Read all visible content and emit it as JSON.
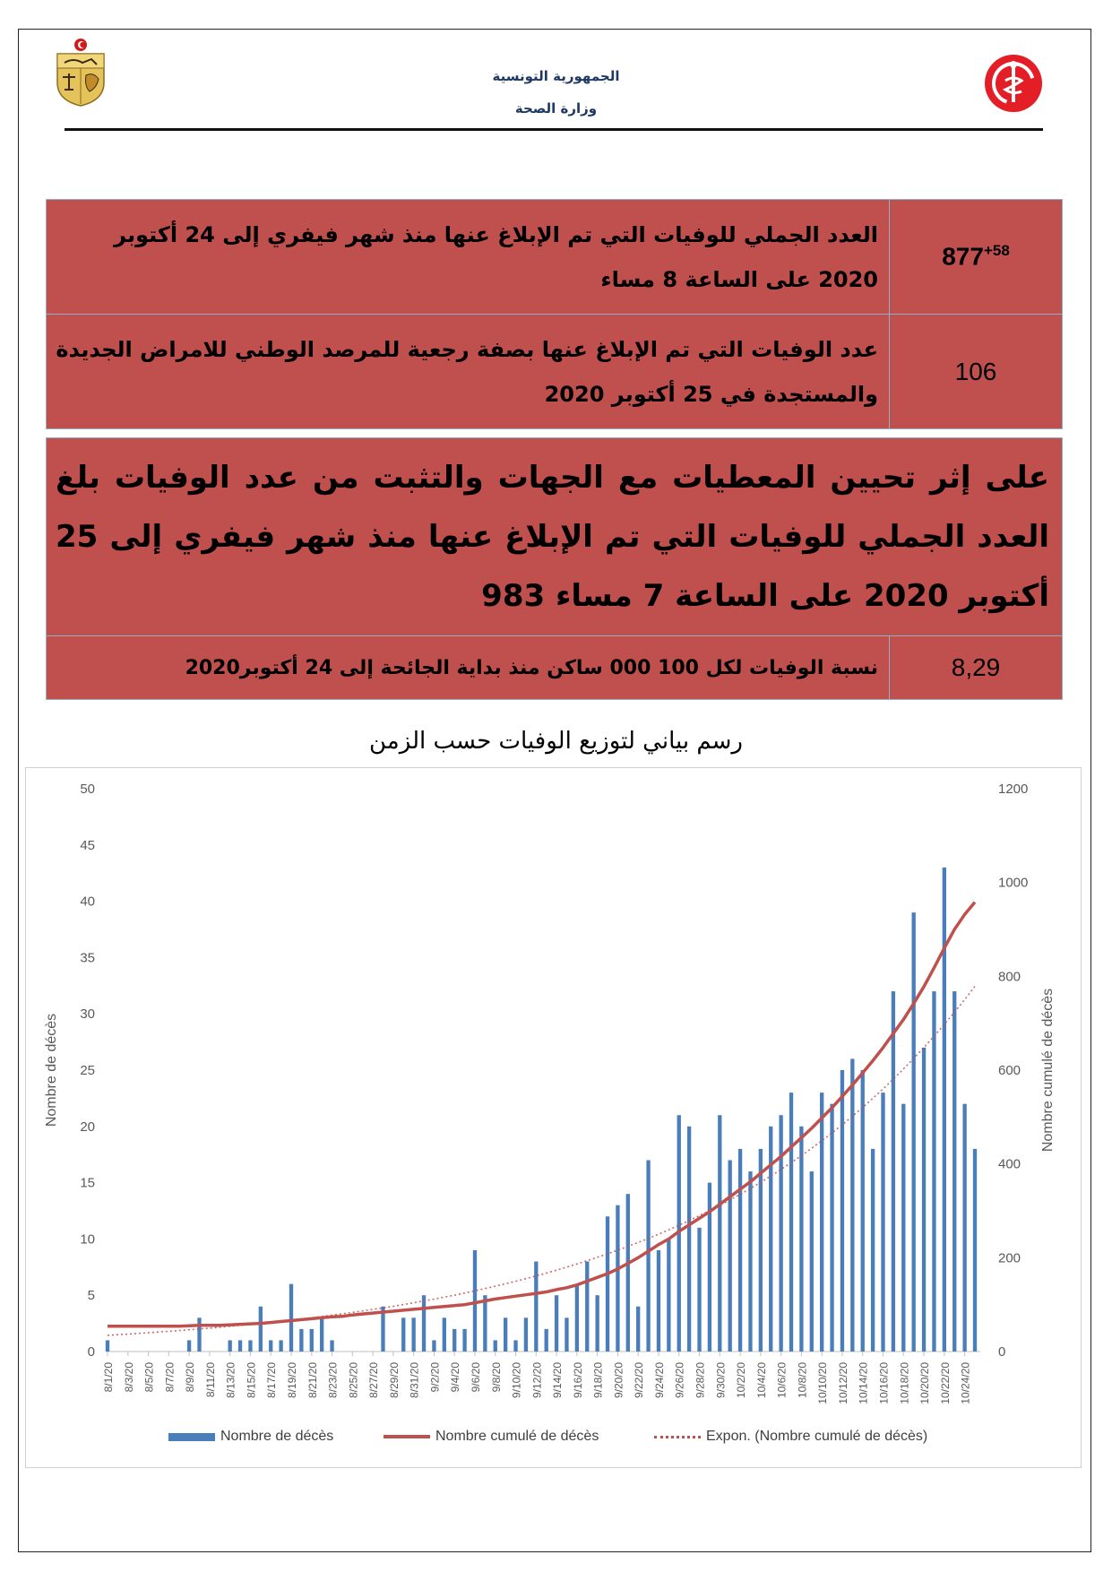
{
  "header": {
    "line1": "الجمهورية التونسية",
    "line2": "وزارة الصحة"
  },
  "summary": {
    "row1": {
      "text": "العدد الجملي للوفيات التي تم الإبلاغ عنها منذ شهر فيفري إلى 24 أكتوبر 2020 على الساعة 8 مساء",
      "value": "877",
      "delta": "+58"
    },
    "row2": {
      "text": "عدد الوفيات التي تم الإبلاغ عنها بصفة رجعية للمرصد الوطني للامراض الجديدة والمستجدة في 25 أكتوبر 2020",
      "value": "106"
    },
    "row3": {
      "text": "على إثر تحيين المعطيات مع الجهات والتثبت من عدد الوفيات بلغ العدد الجملي للوفيات التي تم الإبلاغ عنها منذ شهر فيفري إلى 25 أكتوبر 2020 على الساعة 7 مساء 983"
    },
    "row4": {
      "text": "نسبة الوفيات لكل 100 000 ساكن منذ بداية الجائحة إلى 24 أكتوبر2020",
      "value": "8,29"
    }
  },
  "chart_title": "رسم بياني لتوزيع الوفيات حسب الزمن",
  "colors": {
    "bar": "#4a7ebb",
    "line": "#c0504d",
    "cell": "#c0504d",
    "header_text": "#1f3864"
  },
  "chart_data": {
    "type": "bar",
    "ylabel": "Nombre de décès",
    "y2label": "Nombre cumulé de décès",
    "ylim": [
      0,
      50
    ],
    "y2lim": [
      0,
      1200
    ],
    "yticks": [
      0,
      5,
      10,
      15,
      20,
      25,
      30,
      35,
      40,
      45,
      50
    ],
    "y2ticks": [
      0,
      200,
      400,
      600,
      800,
      1000,
      1200
    ],
    "x_tick_labels": [
      "8/1/20",
      "8/3/20",
      "8/5/20",
      "8/7/20",
      "8/9/20",
      "8/11/20",
      "8/13/20",
      "8/15/20",
      "8/17/20",
      "8/19/20",
      "8/21/20",
      "8/23/20",
      "8/25/20",
      "8/27/20",
      "8/29/20",
      "8/31/20",
      "9/2/20",
      "9/4/20",
      "9/6/20",
      "9/8/20",
      "9/10/20",
      "9/12/20",
      "9/14/20",
      "9/16/20",
      "9/18/20",
      "9/20/20",
      "9/22/20",
      "9/24/20",
      "9/26/20",
      "9/28/20",
      "9/30/20",
      "10/2/20",
      "10/4/20",
      "10/6/20",
      "10/8/20",
      "10/10/20",
      "10/12/20",
      "10/14/20",
      "10/16/20",
      "10/18/20",
      "10/20/20",
      "10/22/20",
      "10/24/20"
    ],
    "x_start": "2020-08-01",
    "x_end": "2020-10-24",
    "series": [
      {
        "name": "Nombre de décès",
        "type": "bar",
        "values": [
          1,
          0,
          0,
          0,
          0,
          0,
          0,
          0,
          1,
          3,
          0,
          0,
          1,
          1,
          1,
          4,
          1,
          1,
          6,
          2,
          2,
          3,
          1,
          0,
          0,
          0,
          0,
          4,
          0,
          3,
          3,
          5,
          1,
          3,
          2,
          2,
          9,
          5,
          1,
          3,
          1,
          3,
          8,
          2,
          5,
          3,
          6,
          8,
          5,
          12,
          13,
          14,
          4,
          17,
          9,
          10,
          21,
          20,
          11,
          15,
          21,
          17,
          18,
          16,
          18,
          20,
          21,
          23,
          20,
          16,
          23,
          22,
          25,
          26,
          25,
          18,
          23,
          32,
          22,
          39,
          27,
          32,
          43,
          32,
          22,
          18
        ]
      },
      {
        "name": "Nombre cumulé de décès",
        "type": "line",
        "values": [
          54,
          54,
          54,
          54,
          54,
          54,
          54,
          54,
          55,
          56,
          56,
          56,
          57,
          58,
          59,
          60,
          62,
          64,
          66,
          68,
          70,
          72,
          74,
          75,
          78,
          80,
          82,
          84,
          86,
          88,
          90,
          92,
          94,
          96,
          98,
          100,
          104,
          108,
          112,
          115,
          118,
          121,
          124,
          127,
          132,
          136,
          142,
          150,
          158,
          166,
          176,
          188,
          200,
          214,
          228,
          240,
          256,
          270,
          284,
          298,
          314,
          330,
          346,
          362,
          380,
          398,
          416,
          436,
          456,
          476,
          498,
          520,
          544,
          568,
          594,
          620,
          648,
          678,
          708,
          742,
          778,
          818,
          860,
          900,
          932,
          958
        ]
      },
      {
        "name": "Expon. (Nombre cumulé de décès)",
        "type": "trendline"
      }
    ]
  }
}
